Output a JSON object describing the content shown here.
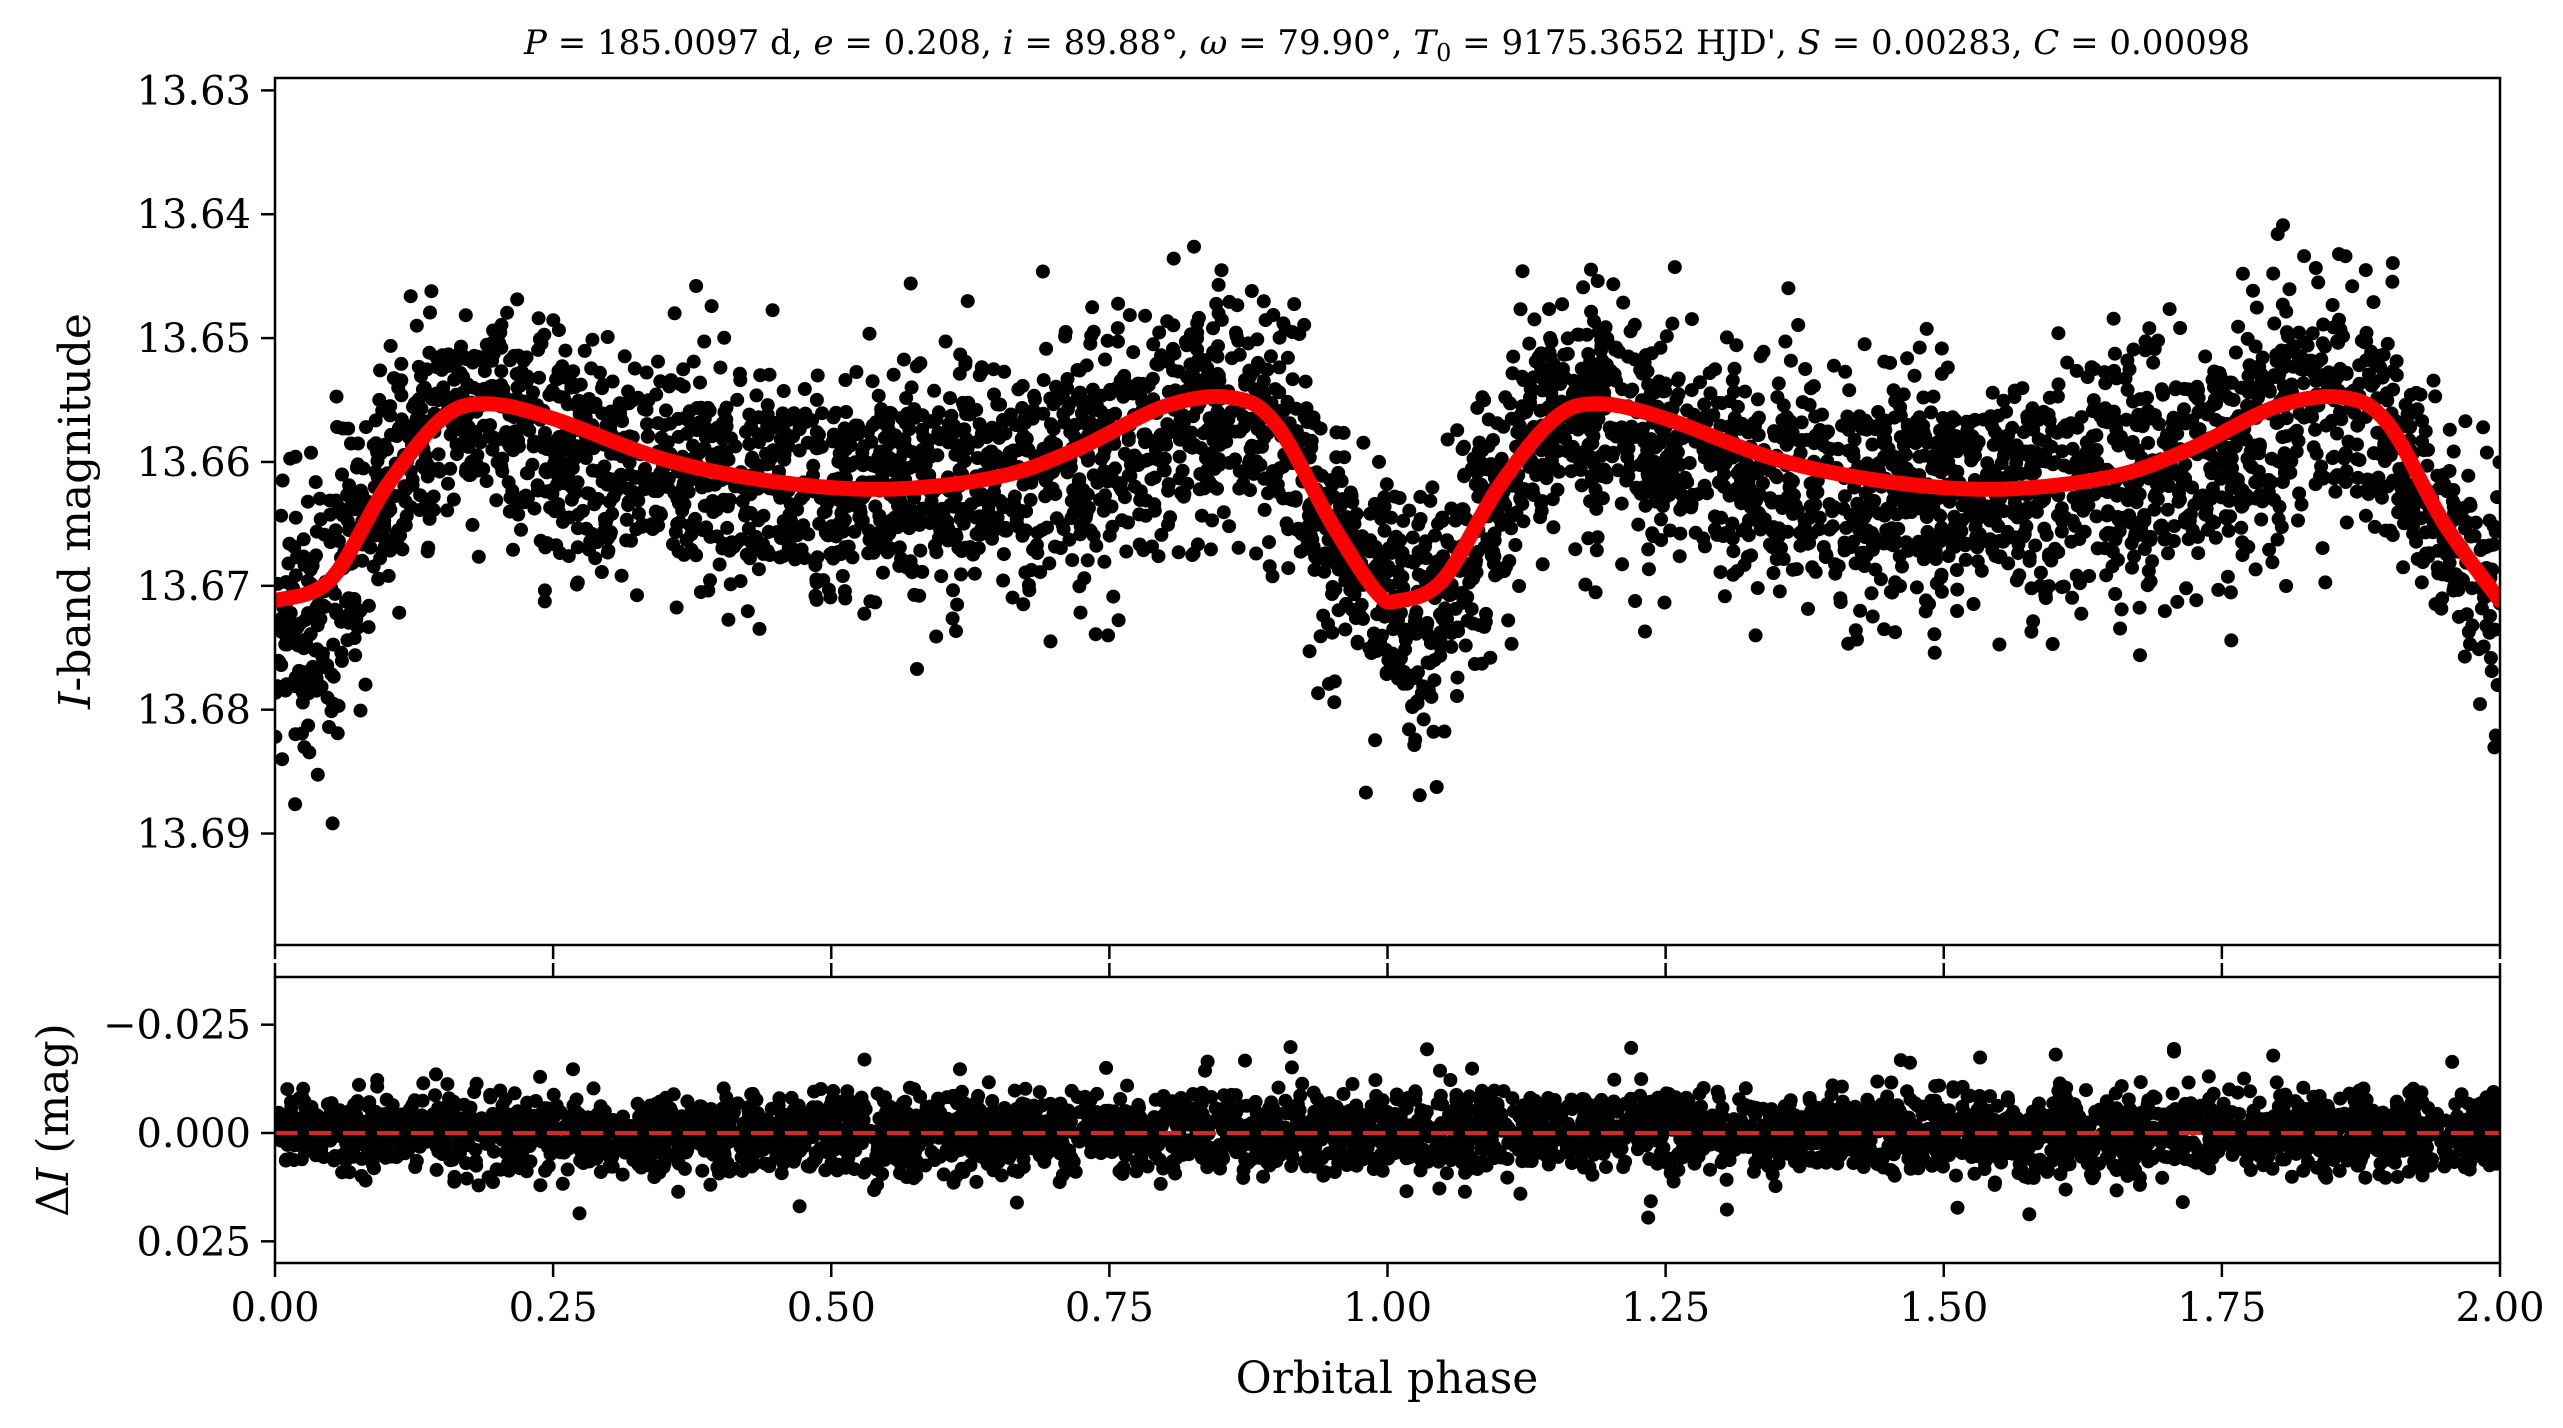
{
  "chart_data": [
    {
      "type": "scatter",
      "title": "P = 185.0097 d, e = 0.208, i = 89.88°, ω = 79.90°, T0 = 9175.3652 HJD', S = 0.00283, C = 0.00098",
      "title_parts": {
        "P": "P",
        "P_val": " = 185.0097 d, ",
        "e": "e",
        "e_val": " = 0.208, ",
        "i": "i",
        "i_val": " = 89.88°, ",
        "w": "ω",
        "w_val": " = 79.90°, ",
        "T": "T",
        "T_sub": "0",
        "T_val": " = 9175.3652 HJD', ",
        "S": "S",
        "S_val": " = 0.00283, ",
        "C": "C",
        "C_val": " = 0.00098"
      },
      "ylabel_italic": "I",
      "ylabel_rest": "-band magnitude",
      "ylim": [
        13.699,
        13.629
      ],
      "y_inverted": true,
      "xlim": [
        0.0,
        2.0
      ],
      "yticks": [
        13.63,
        13.64,
        13.65,
        13.66,
        13.67,
        13.68,
        13.69
      ],
      "ytick_labels": [
        "13.63",
        "13.64",
        "13.65",
        "13.66",
        "13.67",
        "13.68",
        "13.69"
      ],
      "series": [
        {
          "kind": "points",
          "color": "#000000",
          "envelope": {
            "phase": [
              0.0,
              0.03,
              0.07,
              0.1,
              0.15,
              0.2,
              0.3,
              0.45,
              0.6,
              0.75,
              0.8,
              0.85,
              0.9,
              0.95,
              1.0,
              1.03,
              1.07,
              1.1,
              1.15,
              1.2,
              1.3,
              1.45,
              1.6,
              1.75,
              1.8,
              1.85,
              1.9,
              1.95,
              2.0
            ],
            "bright_mag": [
              13.66,
              13.66,
              13.655,
              13.65,
              13.645,
              13.645,
              13.65,
              13.651,
              13.651,
              13.648,
              13.646,
              13.643,
              13.645,
              13.655,
              13.66,
              13.66,
              13.655,
              13.65,
              13.645,
              13.645,
              13.65,
              13.651,
              13.651,
              13.648,
              13.646,
              13.643,
              13.645,
              13.655,
              13.66
            ],
            "faint_mag": [
              13.683,
              13.686,
              13.68,
              13.673,
              13.667,
              13.668,
              13.671,
              13.673,
              13.673,
              13.671,
              13.669,
              13.667,
              13.669,
              13.677,
              13.683,
              13.686,
              13.68,
              13.673,
              13.667,
              13.668,
              13.671,
              13.673,
              13.673,
              13.671,
              13.669,
              13.667,
              13.669,
              13.677,
              13.683
            ]
          }
        },
        {
          "kind": "model",
          "color": "#ff0000",
          "x": [
            0.0,
            0.05,
            0.1,
            0.15,
            0.19,
            0.25,
            0.35,
            0.45,
            0.55,
            0.65,
            0.72,
            0.8,
            0.86,
            0.9,
            0.95,
            0.99,
            1.01,
            1.05,
            1.1,
            1.15,
            1.19,
            1.25,
            1.35,
            1.45,
            1.55,
            1.65,
            1.72,
            1.8,
            1.86,
            1.9,
            1.95,
            2.0
          ],
          "y": [
            13.6712,
            13.6695,
            13.662,
            13.6565,
            13.6553,
            13.6565,
            13.6598,
            13.6616,
            13.6622,
            13.6612,
            13.659,
            13.6555,
            13.6548,
            13.657,
            13.665,
            13.6705,
            13.6712,
            13.6695,
            13.662,
            13.6565,
            13.6553,
            13.6565,
            13.6598,
            13.6616,
            13.6622,
            13.6612,
            13.659,
            13.6555,
            13.6548,
            13.657,
            13.665,
            13.6712
          ]
        }
      ]
    },
    {
      "type": "scatter",
      "ylabel_delta": "Δ",
      "ylabel_italic": "I",
      "ylabel_rest": " (mag)",
      "xlabel": "Orbital phase",
      "xlim": [
        0.0,
        2.0
      ],
      "ylim": [
        0.03,
        -0.036
      ],
      "y_inverted": true,
      "yticks": [
        -0.025,
        0.0,
        0.025
      ],
      "ytick_labels": [
        "−0.025",
        "0.000",
        "0.025"
      ],
      "xticks": [
        0.0,
        0.25,
        0.5,
        0.75,
        1.0,
        1.25,
        1.5,
        1.75,
        2.0
      ],
      "xtick_labels": [
        "0.00",
        "0.25",
        "0.50",
        "0.75",
        "1.00",
        "1.25",
        "1.50",
        "1.75",
        "2.00"
      ],
      "series": [
        {
          "kind": "points",
          "color": "#000000",
          "spread": [
            -0.011,
            0.011
          ]
        },
        {
          "kind": "zero-line",
          "color": "#d62728",
          "value": 0.0,
          "style": "dashed"
        }
      ]
    }
  ]
}
